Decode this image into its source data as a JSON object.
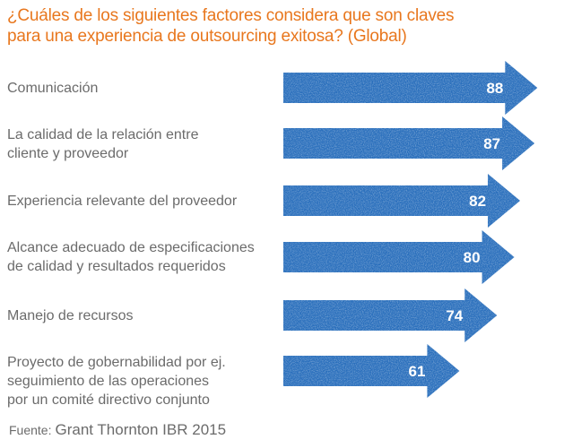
{
  "title_lines": [
    "¿Cuáles de los siguientes factores considera que son claves",
    "para una experiencia de outsourcing exitosa? (Global)"
  ],
  "source": {
    "prefix": "Fuente:",
    "text": "Grant Thornton IBR 2015"
  },
  "colors": {
    "title": "#e8771e",
    "arrow": "#2a6fbc",
    "label_text": "#6b6b6b"
  },
  "chart_data": {
    "type": "bar",
    "orientation": "horizontal",
    "bar_shape": "arrow",
    "title": "¿Cuáles de los siguientes factores considera que son claves para una experiencia de outsourcing exitosa? (Global)",
    "categories": [
      [
        "Comunicación"
      ],
      [
        "La calidad de la relación entre",
        "cliente y proveedor"
      ],
      [
        "Experiencia relevante del proveedor"
      ],
      [
        "Alcance adecuado de especificaciones",
        "de calidad y resultados requeridos"
      ],
      [
        "Manejo de recursos"
      ],
      [
        "Proyecto de gobernabilidad por ej.",
        "seguimiento de las operaciones",
        "por un comité directivo conjunto"
      ]
    ],
    "values": [
      88,
      87,
      82,
      80,
      74,
      61
    ],
    "data_labels": [
      "88",
      "87",
      "82",
      "80",
      "74",
      "61"
    ],
    "xlabel": "",
    "ylabel": "",
    "grid": false,
    "legend": "none"
  }
}
